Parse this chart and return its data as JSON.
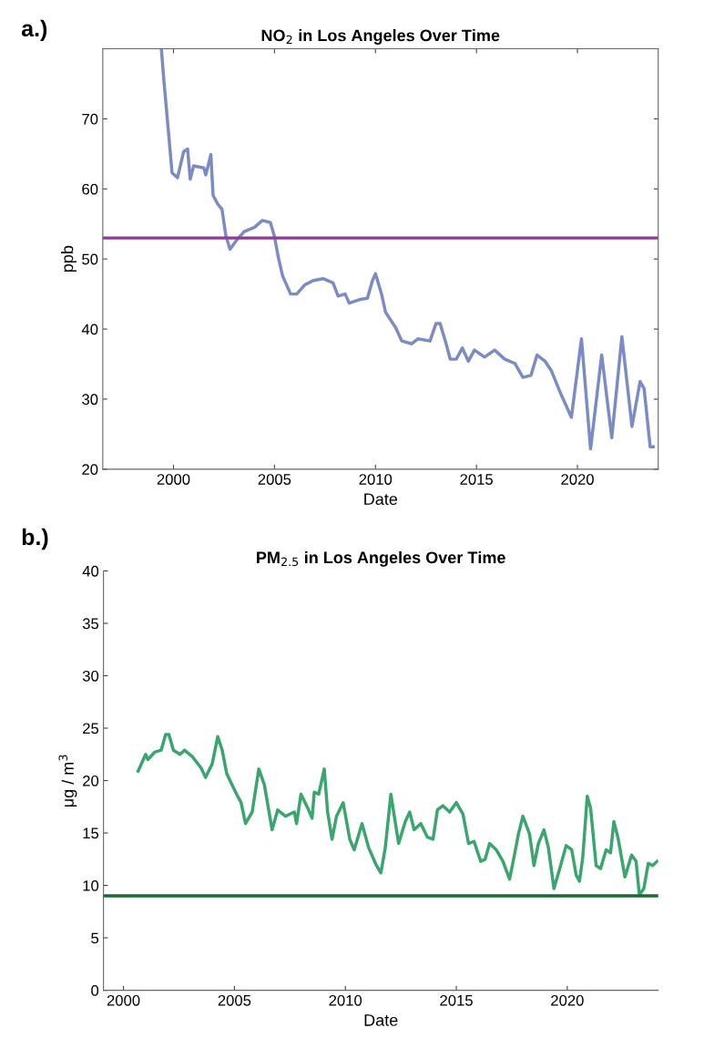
{
  "chart_data": [
    {
      "type": "line",
      "title": "NO$_{2}$ in Los Angeles Over Time",
      "xlabel": "Date",
      "ylabel": "ppb",
      "annotations": [
        "a.)"
      ],
      "xlim": [
        1996.5,
        2024
      ],
      "xticks": [
        2000,
        2005,
        2010,
        2015,
        2020
      ],
      "ylim": [
        20,
        80
      ],
      "yticks": [
        20,
        30,
        40,
        50,
        60,
        70
      ],
      "grid": false,
      "legend": false,
      "ref_lines": [
        {
          "axis": "y",
          "value": 53,
          "label": null,
          "color": "#8e3a96"
        }
      ],
      "series": [
        {
          "color": "#7b8cc4",
          "x": [
            1999.4,
            1999.53,
            1999.75,
            1999.93,
            2000.2,
            2000.5,
            2000.7,
            2000.83,
            2001.0,
            2001.5,
            2001.6,
            2001.85,
            2001.96,
            2002.2,
            2002.4,
            2002.6,
            2002.8,
            2003.1,
            2003.5,
            2004.0,
            2004.4,
            2004.8,
            2005.0,
            2005.2,
            2005.4,
            2005.8,
            2006.1,
            2006.5,
            2006.9,
            2007.4,
            2007.9,
            2008.15,
            2008.5,
            2008.7,
            2009.2,
            2009.6,
            2009.85,
            2010.0,
            2010.3,
            2010.5,
            2011.0,
            2011.3,
            2011.8,
            2012.1,
            2012.7,
            2013.0,
            2013.2,
            2013.5,
            2013.7,
            2014.0,
            2014.3,
            2014.6,
            2014.9,
            2015.4,
            2015.9,
            2016.4,
            2016.9,
            2017.3,
            2017.7,
            2018.0,
            2018.4,
            2018.7,
            2019.2,
            2019.7,
            2020.2,
            2020.65,
            2021.2,
            2021.7,
            2022.2,
            2022.7,
            2023.1,
            2023.3,
            2023.6,
            2023.75
          ],
          "values": [
            80,
            75.3,
            68.2,
            62.3,
            61.6,
            65.3,
            65.7,
            61.4,
            63.3,
            63,
            62,
            64.9,
            59.1,
            57.8,
            57.1,
            53.2,
            51.4,
            52.6,
            53.9,
            54.5,
            55.5,
            55.2,
            53.2,
            50.1,
            47.6,
            45,
            45,
            46.3,
            46.9,
            47.2,
            46.6,
            44.7,
            45,
            43.7,
            44.2,
            44.4,
            46.9,
            47.9,
            45,
            42.4,
            40.2,
            38.3,
            37.9,
            38.6,
            38.3,
            40.8,
            40.8,
            37.9,
            35.7,
            35.7,
            37.3,
            35.4,
            37,
            36,
            37,
            35.7,
            35.1,
            33.1,
            33.4,
            36.3,
            35.4,
            34.1,
            30.6,
            27.4,
            38.6,
            22.9,
            36.3,
            24.5,
            38.9,
            26.1,
            32.5,
            31.5,
            23.2,
            23.2
          ]
        }
      ]
    },
    {
      "type": "line",
      "title": "PM$_{2.5}$ in Los Angeles Over Time",
      "xlabel": "Date",
      "ylabel": "μg / m$^{3}$",
      "annotations": [
        "b.)"
      ],
      "xlim": [
        1999.1,
        2024.1
      ],
      "xticks": [
        2000,
        2005,
        2010,
        2015,
        2020
      ],
      "ylim": [
        0,
        40
      ],
      "yticks": [
        0,
        5,
        10,
        15,
        20,
        25,
        30,
        35,
        40
      ],
      "grid": false,
      "legend": false,
      "ref_lines": [
        {
          "axis": "y",
          "value": 9,
          "label": null,
          "color": "#1a6b33"
        }
      ],
      "series": [
        {
          "color": "#3aa56e",
          "x": [
            2000.66,
            2001.0,
            2001.1,
            2001.4,
            2001.7,
            2001.9,
            2002.05,
            2002.25,
            2002.55,
            2002.75,
            2003.1,
            2003.5,
            2003.7,
            2004.0,
            2004.25,
            2004.45,
            2004.65,
            2004.8,
            2005.1,
            2005.3,
            2005.5,
            2005.8,
            2006.1,
            2006.35,
            2006.7,
            2006.95,
            2007.3,
            2007.7,
            2007.8,
            2008.0,
            2008.3,
            2008.5,
            2008.6,
            2008.8,
            2009.05,
            2009.2,
            2009.4,
            2009.6,
            2009.9,
            2010.2,
            2010.4,
            2010.75,
            2011.05,
            2011.4,
            2011.6,
            2011.8,
            2012.05,
            2012.4,
            2012.7,
            2012.9,
            2013.1,
            2013.4,
            2013.7,
            2013.95,
            2014.15,
            2014.4,
            2014.7,
            2015.0,
            2015.3,
            2015.55,
            2015.8,
            2016.1,
            2016.3,
            2016.5,
            2016.8,
            2017.1,
            2017.4,
            2017.6,
            2017.8,
            2018.0,
            2018.3,
            2018.5,
            2018.7,
            2018.95,
            2019.15,
            2019.4,
            2019.7,
            2019.95,
            2020.2,
            2020.4,
            2020.55,
            2020.7,
            2020.9,
            2021.05,
            2021.3,
            2021.5,
            2021.75,
            2021.95,
            2022.1,
            2022.3,
            2022.6,
            2022.9,
            2023.1,
            2023.25,
            2023.45,
            2023.65,
            2023.85,
            2024.05
          ],
          "values": [
            20.9,
            22.5,
            22,
            22.7,
            22.9,
            24.4,
            24.4,
            22.9,
            22.5,
            22.9,
            22.3,
            21.2,
            20.3,
            21.6,
            24.2,
            22.9,
            20.7,
            20,
            18.7,
            17.9,
            15.9,
            17,
            21.1,
            19.6,
            15.3,
            17.2,
            16.6,
            17,
            15.9,
            18.7,
            17.4,
            16.4,
            18.9,
            18.7,
            21.1,
            17,
            14.4,
            16.6,
            17.9,
            14.4,
            13.4,
            15.9,
            13.6,
            11.9,
            11.2,
            13.6,
            18.7,
            14,
            16.1,
            17,
            15.3,
            15.9,
            14.6,
            14.4,
            17.2,
            17.6,
            17,
            17.9,
            16.8,
            14,
            14.2,
            12.3,
            12.5,
            14,
            13.4,
            12.3,
            10.6,
            12.7,
            14.9,
            16.6,
            14.9,
            11.9,
            14,
            15.3,
            13.6,
            9.7,
            11.9,
            13.8,
            13.4,
            11,
            10.4,
            12.7,
            18.5,
            17.4,
            11.9,
            11.6,
            13.4,
            13.1,
            16.1,
            14.4,
            10.8,
            12.9,
            12.3,
            9.1,
            9.7,
            12.1,
            11.9,
            12.3
          ]
        }
      ]
    }
  ]
}
